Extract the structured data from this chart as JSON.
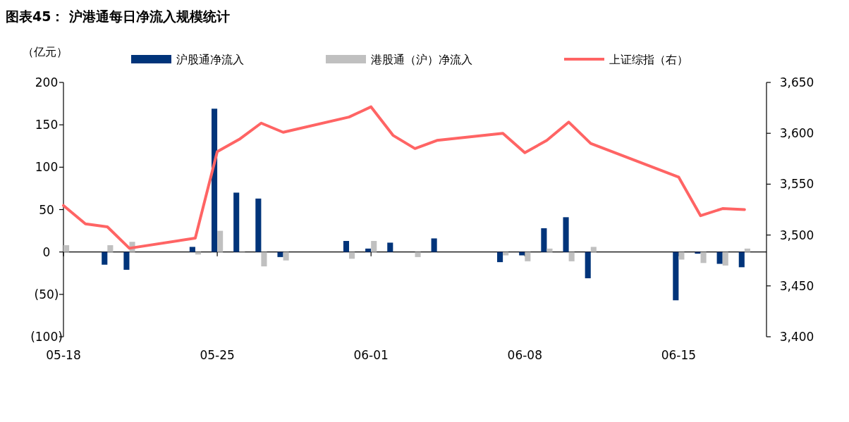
{
  "chart_data": {
    "type": "bar",
    "title": "图表45：  沪港通每日净流入规模统计",
    "ylabel": "（亿元）",
    "legend": "top",
    "x": [
      "--05-18",
      "--05-19",
      "--05-20",
      "--05-21",
      "--05-24",
      "--05-25",
      "--05-26",
      "--05-27",
      "--05-28",
      "--05-31",
      "--06-01",
      "--06-02",
      "--06-03",
      "--06-04",
      "--06-07",
      "--06-08",
      "--06-09",
      "--06-10",
      "--06-11",
      "--06-15",
      "--06-16",
      "--06-17",
      "--06-18"
    ],
    "xlim": [
      "--05-18",
      "--06-19"
    ],
    "xticks": [
      {
        "value": "--05-18",
        "label": "05-18"
      },
      {
        "value": "--05-25",
        "label": "05-25"
      },
      {
        "value": "--06-01",
        "label": "06-01"
      },
      {
        "value": "--06-08",
        "label": "06-08"
      },
      {
        "value": "--06-15",
        "label": "06-15"
      }
    ],
    "ylim": [
      -100,
      200
    ],
    "yticks": [
      200,
      150,
      100,
      50,
      0,
      {
        "value": -50,
        "label": "(50)"
      },
      {
        "value": -100,
        "label": "(100)"
      }
    ],
    "y2lim": [
      3400,
      3650
    ],
    "y2ticks": [
      {
        "value": 3650,
        "label": "3,650"
      },
      {
        "value": 3600,
        "label": "3,600"
      },
      {
        "value": 3550,
        "label": "3,550"
      },
      {
        "value": 3500,
        "label": "3,500"
      },
      {
        "value": 3450,
        "label": "3,450"
      },
      {
        "value": 3400,
        "label": "3,400"
      }
    ],
    "series": [
      {
        "name": "沪股通净流入",
        "color": "#00347a",
        "values": [
          null,
          null,
          -15,
          -21,
          6,
          169,
          70,
          63,
          -6,
          13,
          4,
          11,
          null,
          16,
          -12,
          -4,
          28,
          41,
          -31,
          -57,
          -2,
          -14,
          -18
        ]
      },
      {
        "name": "港股通（沪）净流入",
        "color": "#c0c0c0",
        "values": [
          8,
          null,
          8,
          12,
          -3,
          25,
          0,
          -17,
          -10,
          -8,
          13,
          null,
          -6,
          null,
          -4,
          -11,
          4,
          -11,
          6,
          -9,
          -13,
          -16,
          4
        ]
      },
      {
        "name": "上证综指（右）",
        "type": "line",
        "axis": "y2",
        "color": "#ff6464",
        "values": [
          3529,
          3511,
          3508,
          3487,
          3497,
          3582,
          3594,
          3610,
          3601,
          3616,
          3626,
          3598,
          3585,
          3593,
          3600,
          3581,
          3593,
          3611,
          3590,
          3557,
          3519,
          3526,
          3525
        ]
      }
    ]
  }
}
